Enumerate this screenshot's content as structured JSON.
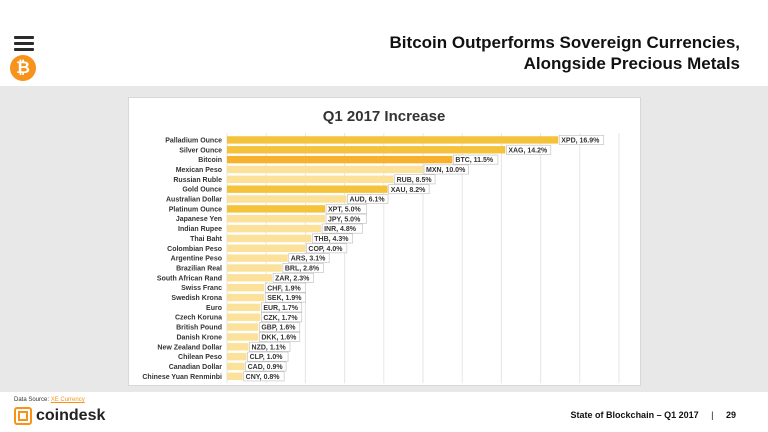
{
  "header": {
    "title_line1": "Bitcoin Outperforms Sovereign Currencies,",
    "title_line2": "Alongside Precious Metals"
  },
  "logo": {
    "symbol": "₿",
    "icon": "bitcoin-icon",
    "brand_color": "#f7931a"
  },
  "footer": {
    "source_label": "Data Source:",
    "source_link": "XE Currency",
    "brand": "coindesk",
    "report": "State of Blockchain – Q1 2017",
    "separator": "|",
    "page": "29"
  },
  "chart_data": {
    "type": "bar",
    "orientation": "horizontal",
    "title": "Q1 2017 Increase",
    "xlabel": "",
    "ylabel": "",
    "xlim": [
      0,
      20
    ],
    "xticks": [
      "0%",
      "2%",
      "4%",
      "6%",
      "8%",
      "10%",
      "12%",
      "14%",
      "16%",
      "18%",
      "20%"
    ],
    "grid": true,
    "colors": {
      "highlight": "#f5c33b",
      "light": "#fbe19a",
      "bitcoin": "#f7b12d"
    },
    "categories": [
      "Palladium Ounce",
      "Silver Ounce",
      "Bitcoin",
      "Mexican Peso",
      "Russian Ruble",
      "Gold Ounce",
      "Australian Dollar",
      "Platinum Ounce",
      "Japanese Yen",
      "Indian Rupee",
      "Thai Baht",
      "Colombian Peso",
      "Argentine Peso",
      "Brazilian Real",
      "South African Rand",
      "Swiss Franc",
      "Swedish Krona",
      "Euro",
      "Czech Koruna",
      "British Pound",
      "Danish Krone",
      "New Zealand Dollar",
      "Chilean Peso",
      "Canadian Dollar",
      "Chinese Yuan Renminbi"
    ],
    "values": [
      16.9,
      14.2,
      11.5,
      10.0,
      8.5,
      8.2,
      6.1,
      5.0,
      5.0,
      4.8,
      4.3,
      4.0,
      3.1,
      2.8,
      2.3,
      1.9,
      1.9,
      1.7,
      1.7,
      1.6,
      1.6,
      1.1,
      1.0,
      0.9,
      0.8
    ],
    "data_labels": [
      "XPD, 16.9%",
      "XAG, 14.2%",
      "BTC, 11.5%",
      "MXN, 10.0%",
      "RUB, 8.5%",
      "XAU, 8.2%",
      "AUD, 6.1%",
      "XPT, 5.0%",
      "JPY, 5.0%",
      "INR, 4.8%",
      "THB, 4.3%",
      "COP, 4.0%",
      "ARS, 3.1%",
      "BRL, 2.8%",
      "ZAR, 2.3%",
      "CHF, 1.9%",
      "SEK, 1.9%",
      "EUR, 1.7%",
      "CZK, 1.7%",
      "GBP, 1.6%",
      "DKK, 1.6%",
      "NZD, 1.1%",
      "CLP, 1.0%",
      "CAD, 0.9%",
      "CNY, 0.8%"
    ],
    "highlight": [
      true,
      true,
      true,
      false,
      false,
      true,
      false,
      true,
      false,
      false,
      false,
      false,
      false,
      false,
      false,
      false,
      false,
      false,
      false,
      false,
      false,
      false,
      false,
      false,
      false
    ]
  }
}
